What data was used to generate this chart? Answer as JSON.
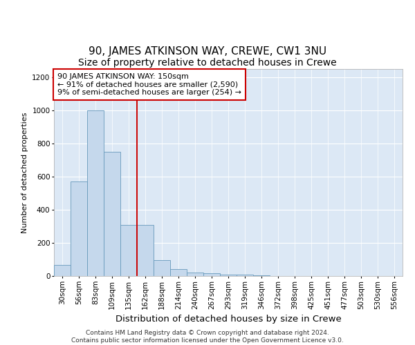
{
  "title1": "90, JAMES ATKINSON WAY, CREWE, CW1 3NU",
  "title2": "Size of property relative to detached houses in Crewe",
  "xlabel": "Distribution of detached houses by size in Crewe",
  "ylabel": "Number of detached properties",
  "bar_labels": [
    "30sqm",
    "56sqm",
    "83sqm",
    "109sqm",
    "135sqm",
    "162sqm",
    "188sqm",
    "214sqm",
    "240sqm",
    "267sqm",
    "293sqm",
    "319sqm",
    "346sqm",
    "372sqm",
    "398sqm",
    "425sqm",
    "451sqm",
    "477sqm",
    "503sqm",
    "530sqm",
    "556sqm"
  ],
  "bar_values": [
    65,
    570,
    1000,
    750,
    310,
    310,
    95,
    40,
    20,
    15,
    10,
    10,
    5,
    0,
    0,
    0,
    0,
    0,
    0,
    0,
    0
  ],
  "bar_color": "#c5d8ec",
  "bar_edge_color": "#6699bb",
  "red_line_x": 4.5,
  "red_line_color": "#cc0000",
  "annotation_text": "90 JAMES ATKINSON WAY: 150sqm\n← 91% of detached houses are smaller (2,590)\n9% of semi-detached houses are larger (254) →",
  "annotation_box_facecolor": "#ffffff",
  "annotation_box_edgecolor": "#cc0000",
  "ylim": [
    0,
    1250
  ],
  "yticks": [
    0,
    200,
    400,
    600,
    800,
    1000,
    1200
  ],
  "fig_bg_color": "#ffffff",
  "plot_bg_color": "#dce8f5",
  "grid_color": "#ffffff",
  "footer_text": "Contains HM Land Registry data © Crown copyright and database right 2024.\nContains public sector information licensed under the Open Government Licence v3.0.",
  "title1_fontsize": 11,
  "title2_fontsize": 10,
  "xlabel_fontsize": 9.5,
  "ylabel_fontsize": 8,
  "annotation_fontsize": 8,
  "footer_fontsize": 6.5,
  "tick_labelsize": 7.5
}
